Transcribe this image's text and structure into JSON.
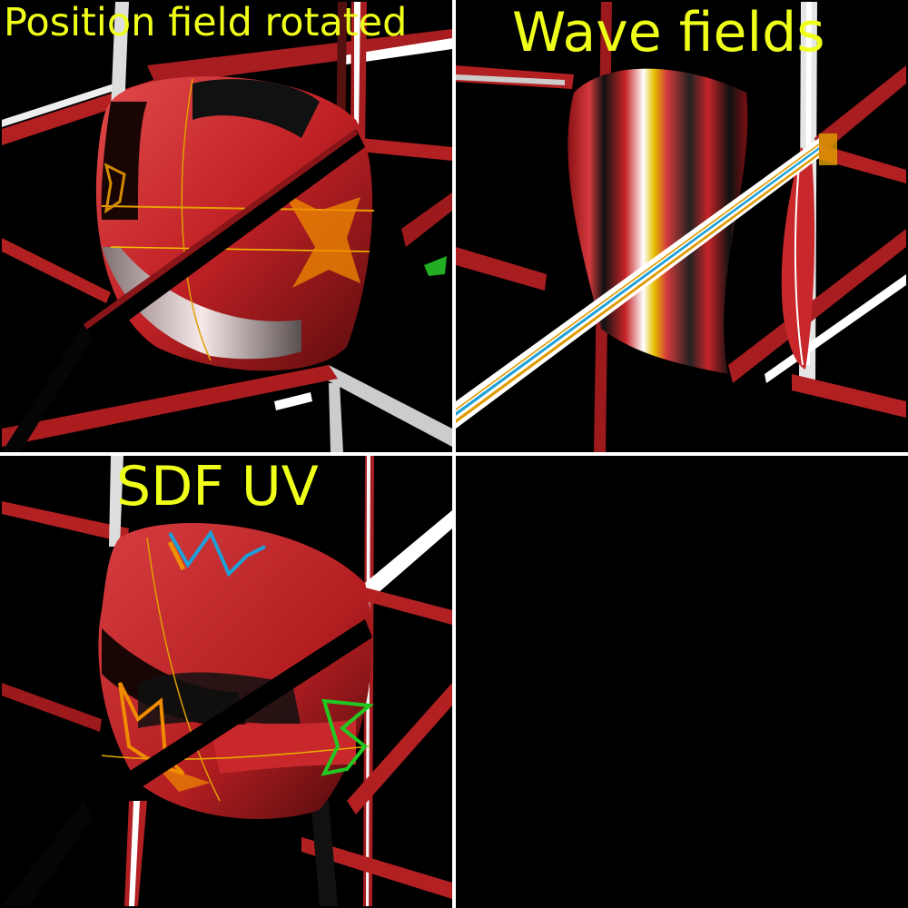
{
  "panels": {
    "position_rotated": {
      "title": "Position field rotated"
    },
    "wave_fields": {
      "title": "Wave fields"
    },
    "sdf_uv": {
      "title": "SDF UV"
    },
    "empty": {
      "title": ""
    }
  },
  "colors": {
    "label": "#f0ff1a",
    "background": "#000000",
    "divider": "#ffffff",
    "surface_red": "#c8282b",
    "grid_white": "#ffffff"
  }
}
